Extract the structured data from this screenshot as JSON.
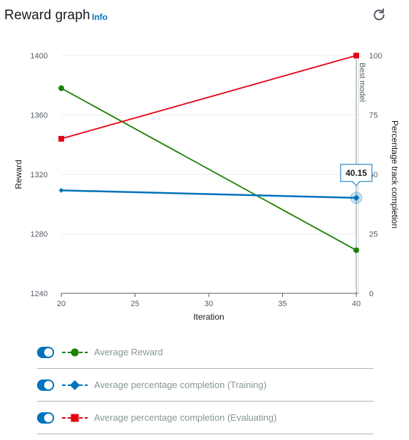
{
  "header": {
    "title": "Reward graph",
    "info_label": "Info",
    "refresh_icon": "refresh-icon"
  },
  "chart_data": {
    "type": "line",
    "x": [
      20,
      40
    ],
    "xlabel": "Iteration",
    "xlim": [
      20,
      40
    ],
    "xticks": [
      20,
      25,
      30,
      35,
      40
    ],
    "ylabel": "Reward",
    "ylim": [
      1240,
      1400
    ],
    "yticks": [
      1240,
      1280,
      1320,
      1360,
      1400
    ],
    "y2label": "Percentage track completion",
    "y2lim": [
      0,
      100
    ],
    "y2ticks": [
      0,
      25,
      50,
      75,
      100
    ],
    "grid": "horizontal",
    "best_model_label": "Best model",
    "best_model_x": 40,
    "tooltip": {
      "x": 40,
      "value": "40.15"
    },
    "series": [
      {
        "name": "Average Reward",
        "axis": "left",
        "values": [
          1378,
          1269
        ],
        "color": "#1d8102",
        "marker": "circle"
      },
      {
        "name": "Average percentage completion (Training)",
        "axis": "right",
        "values": [
          43.3,
          40.15
        ],
        "color": "#0073bb",
        "marker": "diamond"
      },
      {
        "name": "Average percentage completion (Evaluating)",
        "axis": "right",
        "values": [
          65,
          100
        ],
        "color": "#e60012",
        "marker": "square"
      }
    ]
  }
}
